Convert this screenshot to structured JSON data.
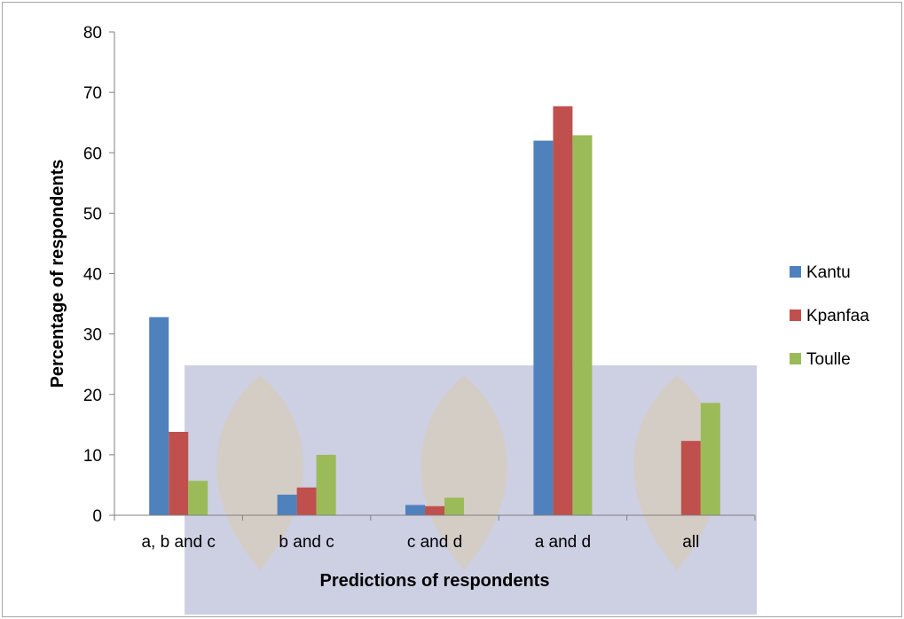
{
  "chart_data": {
    "type": "bar",
    "title": "",
    "xlabel": "Predictions of respondents",
    "ylabel": "Percentage of respondents",
    "ylim": [
      0,
      80
    ],
    "yticks": [
      0,
      10,
      20,
      30,
      40,
      50,
      60,
      70,
      80
    ],
    "grid": false,
    "legend_position": "right",
    "categories": [
      "a, b and c",
      "b and c",
      "c and d",
      "a and d",
      "all"
    ],
    "series": [
      {
        "name": "Kantu",
        "color": "#4f81bd",
        "values": [
          32.8,
          3.4,
          1.7,
          62.0,
          0
        ]
      },
      {
        "name": "Kpanfaa",
        "color": "#c0504d",
        "values": [
          13.8,
          4.6,
          1.5,
          67.7,
          12.3
        ]
      },
      {
        "name": "Toulle",
        "color": "#9bbb59",
        "values": [
          5.7,
          10.0,
          2.9,
          62.9,
          18.6
        ]
      }
    ]
  }
}
